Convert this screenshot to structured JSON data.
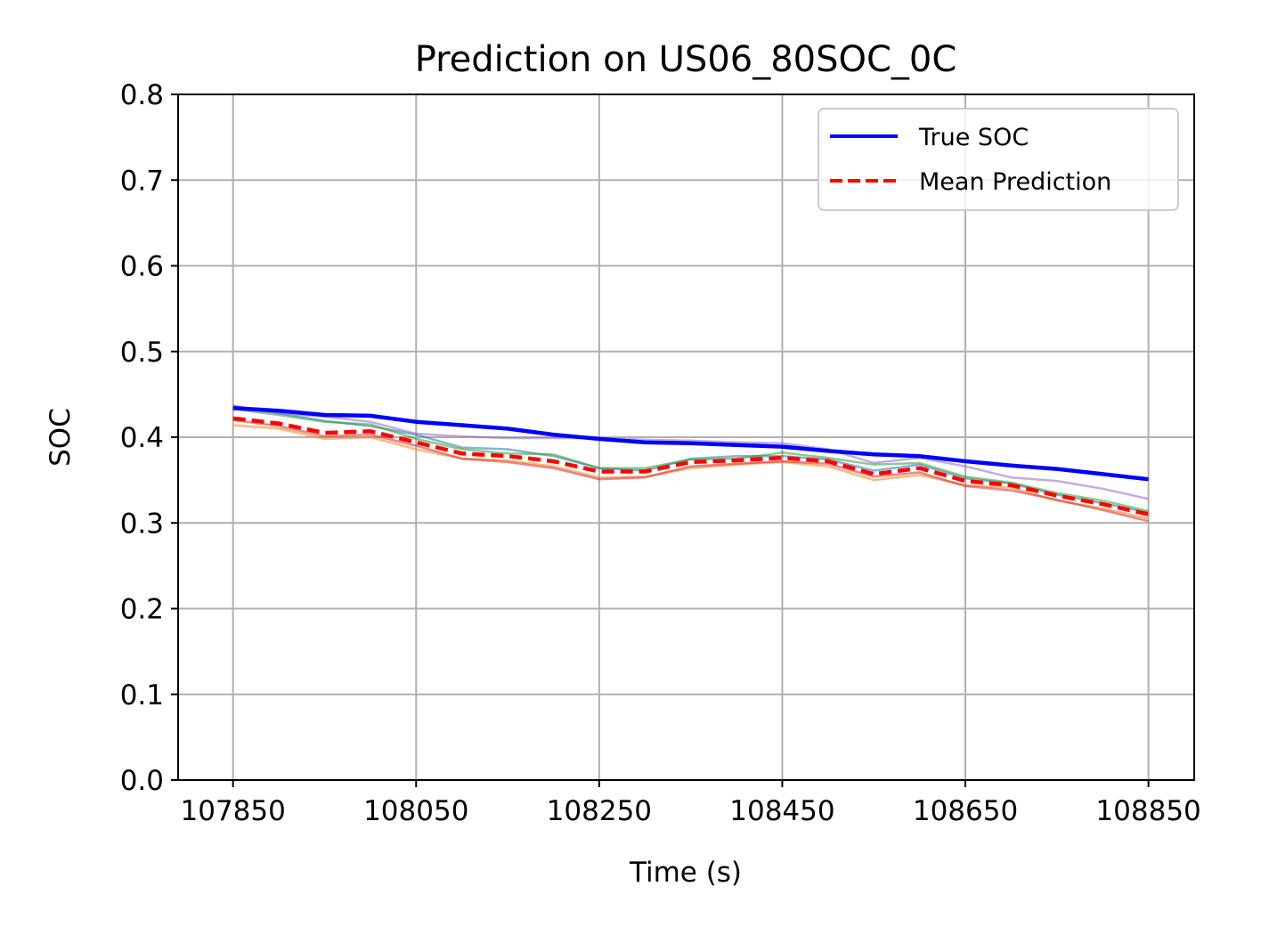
{
  "chart_data": {
    "type": "line",
    "title": "Prediction on US06_80SOC_0C",
    "xlabel": "Time (s)",
    "ylabel": "SOC",
    "xlim": [
      107790,
      108900
    ],
    "ylim": [
      0.0,
      0.8
    ],
    "xticks": [
      "107850",
      "108050",
      "108250",
      "108450",
      "108650",
      "108850"
    ],
    "yticks": [
      "0.0",
      "0.1",
      "0.2",
      "0.3",
      "0.4",
      "0.5",
      "0.6",
      "0.7",
      "0.8"
    ],
    "grid": true,
    "legend_position": "top-right",
    "legend": [
      "True SOC",
      "Mean Prediction"
    ],
    "x": [
      107850,
      107900,
      107950,
      108000,
      108050,
      108100,
      108150,
      108200,
      108250,
      108300,
      108350,
      108400,
      108450,
      108500,
      108550,
      108600,
      108650,
      108700,
      108750,
      108800,
      108850
    ],
    "series": [
      {
        "name": "True SOC",
        "color": "#0000ff",
        "style": "solid",
        "values": [
          0.434,
          0.431,
          0.426,
          0.425,
          0.418,
          0.414,
          0.41,
          0.403,
          0.398,
          0.394,
          0.393,
          0.391,
          0.389,
          0.384,
          0.38,
          0.378,
          0.372,
          0.367,
          0.363,
          0.357,
          0.351
        ]
      },
      {
        "name": "Mean Prediction",
        "color": "#ff0000",
        "style": "dashed",
        "values": [
          0.422,
          0.416,
          0.405,
          0.407,
          0.394,
          0.381,
          0.378,
          0.372,
          0.36,
          0.36,
          0.371,
          0.373,
          0.376,
          0.372,
          0.357,
          0.364,
          0.349,
          0.344,
          0.332,
          0.322,
          0.31
        ]
      }
    ],
    "ensemble_members": [
      {
        "color": "#1f77b4",
        "values": [
          0.436,
          0.428,
          0.419,
          0.413,
          0.403,
          0.388,
          0.386,
          0.378,
          0.364,
          0.361,
          0.375,
          0.378,
          0.378,
          0.374,
          0.361,
          0.368,
          0.352,
          0.346,
          0.333,
          0.323,
          0.312
        ]
      },
      {
        "color": "#ff7f0e",
        "values": [
          0.414,
          0.41,
          0.398,
          0.4,
          0.386,
          0.375,
          0.373,
          0.366,
          0.353,
          0.354,
          0.364,
          0.368,
          0.371,
          0.366,
          0.35,
          0.356,
          0.344,
          0.341,
          0.326,
          0.317,
          0.305
        ]
      },
      {
        "color": "#2ca02c",
        "values": [
          0.433,
          0.426,
          0.418,
          0.415,
          0.398,
          0.386,
          0.381,
          0.38,
          0.364,
          0.364,
          0.374,
          0.375,
          0.382,
          0.376,
          0.368,
          0.37,
          0.354,
          0.347,
          0.335,
          0.326,
          0.314
        ]
      },
      {
        "color": "#d62728",
        "values": [
          0.42,
          0.413,
          0.401,
          0.403,
          0.39,
          0.375,
          0.371,
          0.364,
          0.351,
          0.353,
          0.366,
          0.369,
          0.372,
          0.369,
          0.354,
          0.359,
          0.343,
          0.338,
          0.327,
          0.315,
          0.302
        ]
      },
      {
        "color": "#9467bd",
        "values": [
          0.437,
          0.428,
          0.424,
          0.418,
          0.404,
          0.401,
          0.399,
          0.399,
          0.399,
          0.397,
          0.396,
          0.394,
          0.393,
          0.386,
          0.37,
          0.376,
          0.366,
          0.353,
          0.349,
          0.34,
          0.328
        ]
      }
    ]
  }
}
